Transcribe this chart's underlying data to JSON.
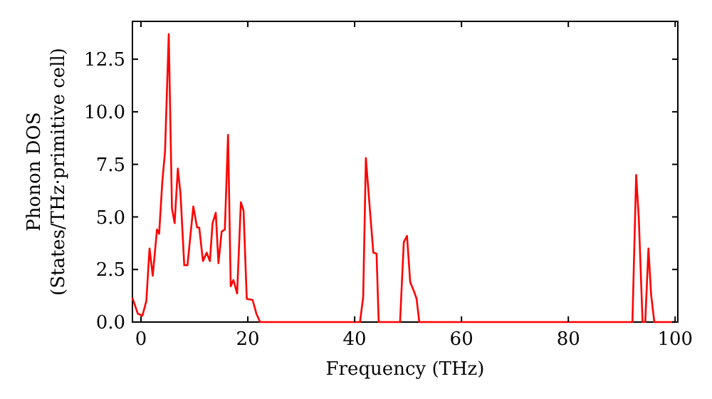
{
  "chart_data": {
    "type": "line",
    "xlabel": "Frequency (THz)",
    "ylabel": "Phonon DOS\n(States/THz·primitive cell)",
    "xlim": [
      -1.6,
      100.5
    ],
    "xticks": [
      0,
      20,
      40,
      60,
      80,
      100
    ],
    "ylim": [
      0,
      14.3
    ],
    "yticks": [
      {
        "value": 0,
        "label": "0.0"
      },
      {
        "value": 2.5,
        "label": "2.5"
      },
      {
        "value": 5,
        "label": "5.0"
      },
      {
        "value": 7.5,
        "label": "7.5"
      },
      {
        "value": 10,
        "label": "10.0"
      },
      {
        "value": 12.5,
        "label": "12.5"
      }
    ],
    "grid": false,
    "marker": "none",
    "line_style": "solid",
    "series": [
      {
        "color": "#ff0000",
        "x": [
          -1.6,
          -0.6,
          0.27,
          1.0,
          1.6,
          2.2,
          3.0,
          3.4,
          4.0,
          4.5,
          5.2,
          5.8,
          6.3,
          6.9,
          7.4,
          8.1,
          8.7,
          9.8,
          10.5,
          10.9,
          11.6,
          12.3,
          12.9,
          13.4,
          14.0,
          14.5,
          15.1,
          15.7,
          16.3,
          16.8,
          17.3,
          18.0,
          18.7,
          19.2,
          19.8,
          20.9,
          21.6,
          22.3,
          41.0,
          41.6,
          42.1,
          42.9,
          43.5,
          44.1,
          44.5,
          48.5,
          49.2,
          49.8,
          50.4,
          51.2,
          51.6,
          52.1,
          92.0,
          92.7,
          93.2,
          93.9,
          94.4,
          95.0,
          95.5,
          96.1,
          100
        ],
        "values": [
          1.15,
          0.4,
          0.3,
          1.0,
          3.5,
          2.2,
          4.4,
          4.2,
          6.7,
          8.1,
          13.7,
          5.4,
          4.7,
          7.3,
          6.1,
          2.7,
          2.7,
          5.5,
          4.5,
          4.5,
          2.9,
          3.3,
          2.9,
          4.7,
          5.2,
          2.8,
          4.3,
          4.4,
          8.9,
          1.7,
          2.0,
          1.36,
          5.7,
          5.3,
          1.1,
          1.05,
          0.4,
          0,
          0,
          1.2,
          7.8,
          5.2,
          3.3,
          3.25,
          0,
          0,
          3.8,
          4.1,
          1.9,
          1.4,
          1.1,
          0,
          0,
          7.0,
          4.9,
          0,
          0,
          3.5,
          1.3,
          0,
          0
        ]
      }
    ]
  }
}
